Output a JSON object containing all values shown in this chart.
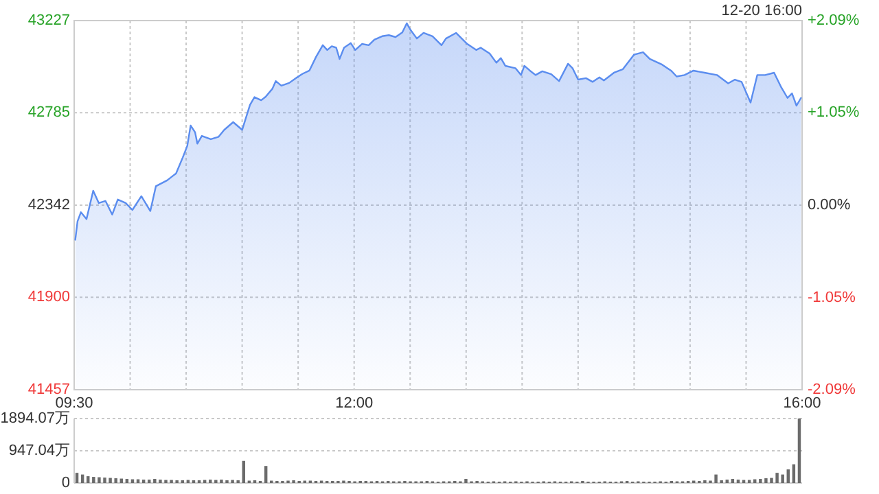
{
  "chart_data": [
    {
      "type": "area",
      "subtitle": "12-20 16:00",
      "grid": true,
      "xlim": [
        9.5,
        16
      ],
      "xticks": [
        {
          "value": 9.5,
          "label": "09:30"
        },
        {
          "value": 10,
          "label": null
        },
        {
          "value": 10.5,
          "label": null
        },
        {
          "value": 11,
          "label": null
        },
        {
          "value": 11.5,
          "label": null
        },
        {
          "value": 12,
          "label": "12:00"
        },
        {
          "value": 12.5,
          "label": null
        },
        {
          "value": 13,
          "label": null
        },
        {
          "value": 13.5,
          "label": null
        },
        {
          "value": 14,
          "label": null
        },
        {
          "value": 14.5,
          "label": null
        },
        {
          "value": 15,
          "label": null
        },
        {
          "value": 15.5,
          "label": null
        },
        {
          "value": 16,
          "label": "16:00"
        }
      ],
      "ylim": [
        41457,
        43227
      ],
      "yticks": [
        43227,
        42785,
        42342,
        41900,
        41457
      ],
      "y2lim": [
        -2.09,
        2.09
      ],
      "y2ticks": [
        {
          "value": 2.09,
          "label": "+2.09%"
        },
        {
          "value": 1.05,
          "label": "+1.05%"
        },
        {
          "value": 0,
          "label": "0.00%"
        },
        {
          "value": -1.05,
          "label": "-1.05%"
        },
        {
          "value": -2.09,
          "label": "-2.09%"
        }
      ],
      "x": [
        9.51,
        9.53,
        9.56,
        9.61,
        9.67,
        9.72,
        9.78,
        9.84,
        9.89,
        9.96,
        10.02,
        10.1,
        10.18,
        10.23,
        10.33,
        10.41,
        10.47,
        10.51,
        10.54,
        10.58,
        10.6,
        10.64,
        10.72,
        10.79,
        10.84,
        10.92,
        11.0,
        11.07,
        11.11,
        11.17,
        11.21,
        11.27,
        11.3,
        11.35,
        11.42,
        11.49,
        11.54,
        11.6,
        11.66,
        11.72,
        11.76,
        11.8,
        11.84,
        11.87,
        11.91,
        11.97,
        12.01,
        12.07,
        12.13,
        12.18,
        12.25,
        12.31,
        12.37,
        12.43,
        12.47,
        12.5,
        12.56,
        12.62,
        12.7,
        12.78,
        12.82,
        12.91,
        13.01,
        13.09,
        13.13,
        13.21,
        13.27,
        13.31,
        13.35,
        13.44,
        13.49,
        13.52,
        13.57,
        13.62,
        13.68,
        13.76,
        13.83,
        13.91,
        13.95,
        14.0,
        14.07,
        14.13,
        14.19,
        14.23,
        14.32,
        14.4,
        14.5,
        14.58,
        14.64,
        14.75,
        14.83,
        14.88,
        14.95,
        15.03,
        15.13,
        15.24,
        15.34,
        15.4,
        15.46,
        15.54,
        15.6,
        15.67,
        15.75,
        15.81,
        15.87,
        15.91,
        15.95,
        15.99
      ],
      "series": [
        {
          "color": "#5b8def",
          "values": [
            42176,
            42264,
            42308,
            42275,
            42411,
            42352,
            42362,
            42297,
            42369,
            42352,
            42319,
            42385,
            42314,
            42433,
            42461,
            42494,
            42571,
            42626,
            42724,
            42691,
            42637,
            42674,
            42658,
            42670,
            42703,
            42740,
            42703,
            42823,
            42860,
            42845,
            42862,
            42900,
            42937,
            42915,
            42928,
            42955,
            42972,
            42987,
            43053,
            43109,
            43086,
            43104,
            43097,
            43043,
            43097,
            43119,
            43086,
            43115,
            43109,
            43135,
            43152,
            43157,
            43148,
            43170,
            43214,
            43185,
            43141,
            43168,
            43152,
            43109,
            43141,
            43168,
            43115,
            43086,
            43097,
            43069,
            43025,
            43047,
            43010,
            42999,
            42966,
            43010,
            42987,
            42966,
            42984,
            42970,
            42937,
            43020,
            42999,
            42944,
            42951,
            42933,
            42955,
            42940,
            42977,
            42994,
            43064,
            43075,
            43043,
            43016,
            42987,
            42959,
            42966,
            42987,
            42977,
            42966,
            42926,
            42944,
            42933,
            42834,
            42966,
            42966,
            42977,
            42911,
            42856,
            42878,
            42819,
            42856
          ]
        }
      ]
    },
    {
      "type": "bar",
      "grid": "y",
      "tick_labels": "y",
      "color": "#6b6b6b",
      "ylim": [
        0,
        1894.07
      ],
      "yticks": [
        {
          "value": 1894.07,
          "label": "1894.07万"
        },
        {
          "value": 947.04,
          "label": "947.04万"
        },
        0
      ],
      "categories": [
        null,
        null,
        null,
        null,
        null,
        null,
        null,
        null,
        null,
        null,
        null,
        null,
        null,
        null,
        null,
        null,
        null,
        null,
        null,
        null,
        null,
        null,
        null,
        null,
        null,
        null,
        null,
        null,
        null,
        null,
        null,
        null,
        null,
        null,
        null,
        null,
        null,
        null,
        null,
        null,
        null,
        null,
        null,
        null,
        null,
        null,
        null,
        null,
        null,
        null,
        null,
        null,
        null,
        null,
        null,
        null,
        null,
        null,
        null,
        null,
        null,
        null,
        null,
        null,
        null,
        null,
        null,
        null,
        null,
        null,
        null,
        null,
        null,
        null,
        null,
        null,
        null,
        null,
        null,
        null,
        null,
        null,
        null,
        null,
        null,
        null,
        null,
        null,
        null,
        null,
        null,
        null,
        null,
        null,
        null,
        null,
        null,
        null,
        null,
        null,
        null,
        null,
        null,
        null,
        null,
        null,
        null,
        null,
        null,
        null,
        null,
        null,
        null,
        null,
        null,
        null,
        null,
        null,
        null,
        null,
        null,
        null,
        null,
        null,
        null,
        null,
        null,
        null,
        null,
        null,
        null
      ],
      "values": [
        300,
        250,
        200,
        180,
        170,
        160,
        150,
        140,
        130,
        120,
        110,
        110,
        100,
        100,
        120,
        100,
        90,
        90,
        80,
        80,
        90,
        80,
        80,
        90,
        100,
        90,
        100,
        80,
        90,
        80,
        650,
        70,
        80,
        60,
        500,
        70,
        60,
        60,
        70,
        80,
        60,
        70,
        70,
        60,
        70,
        60,
        60,
        60,
        70,
        60,
        50,
        60,
        60,
        50,
        60,
        50,
        60,
        50,
        50,
        60,
        50,
        50,
        50,
        60,
        50,
        40,
        50,
        50,
        60,
        50,
        120,
        50,
        60,
        50,
        40,
        50,
        40,
        50,
        40,
        50,
        40,
        50,
        40,
        40,
        50,
        40,
        50,
        40,
        40,
        50,
        40,
        60,
        40,
        40,
        40,
        50,
        40,
        40,
        50,
        60,
        40,
        50,
        40,
        40,
        40,
        50,
        40,
        60,
        50,
        50,
        60,
        70,
        60,
        80,
        70,
        250,
        80,
        100,
        120,
        100,
        90,
        90,
        110,
        120,
        140,
        150,
        300,
        250,
        400,
        550,
        1894.07
      ]
    }
  ]
}
